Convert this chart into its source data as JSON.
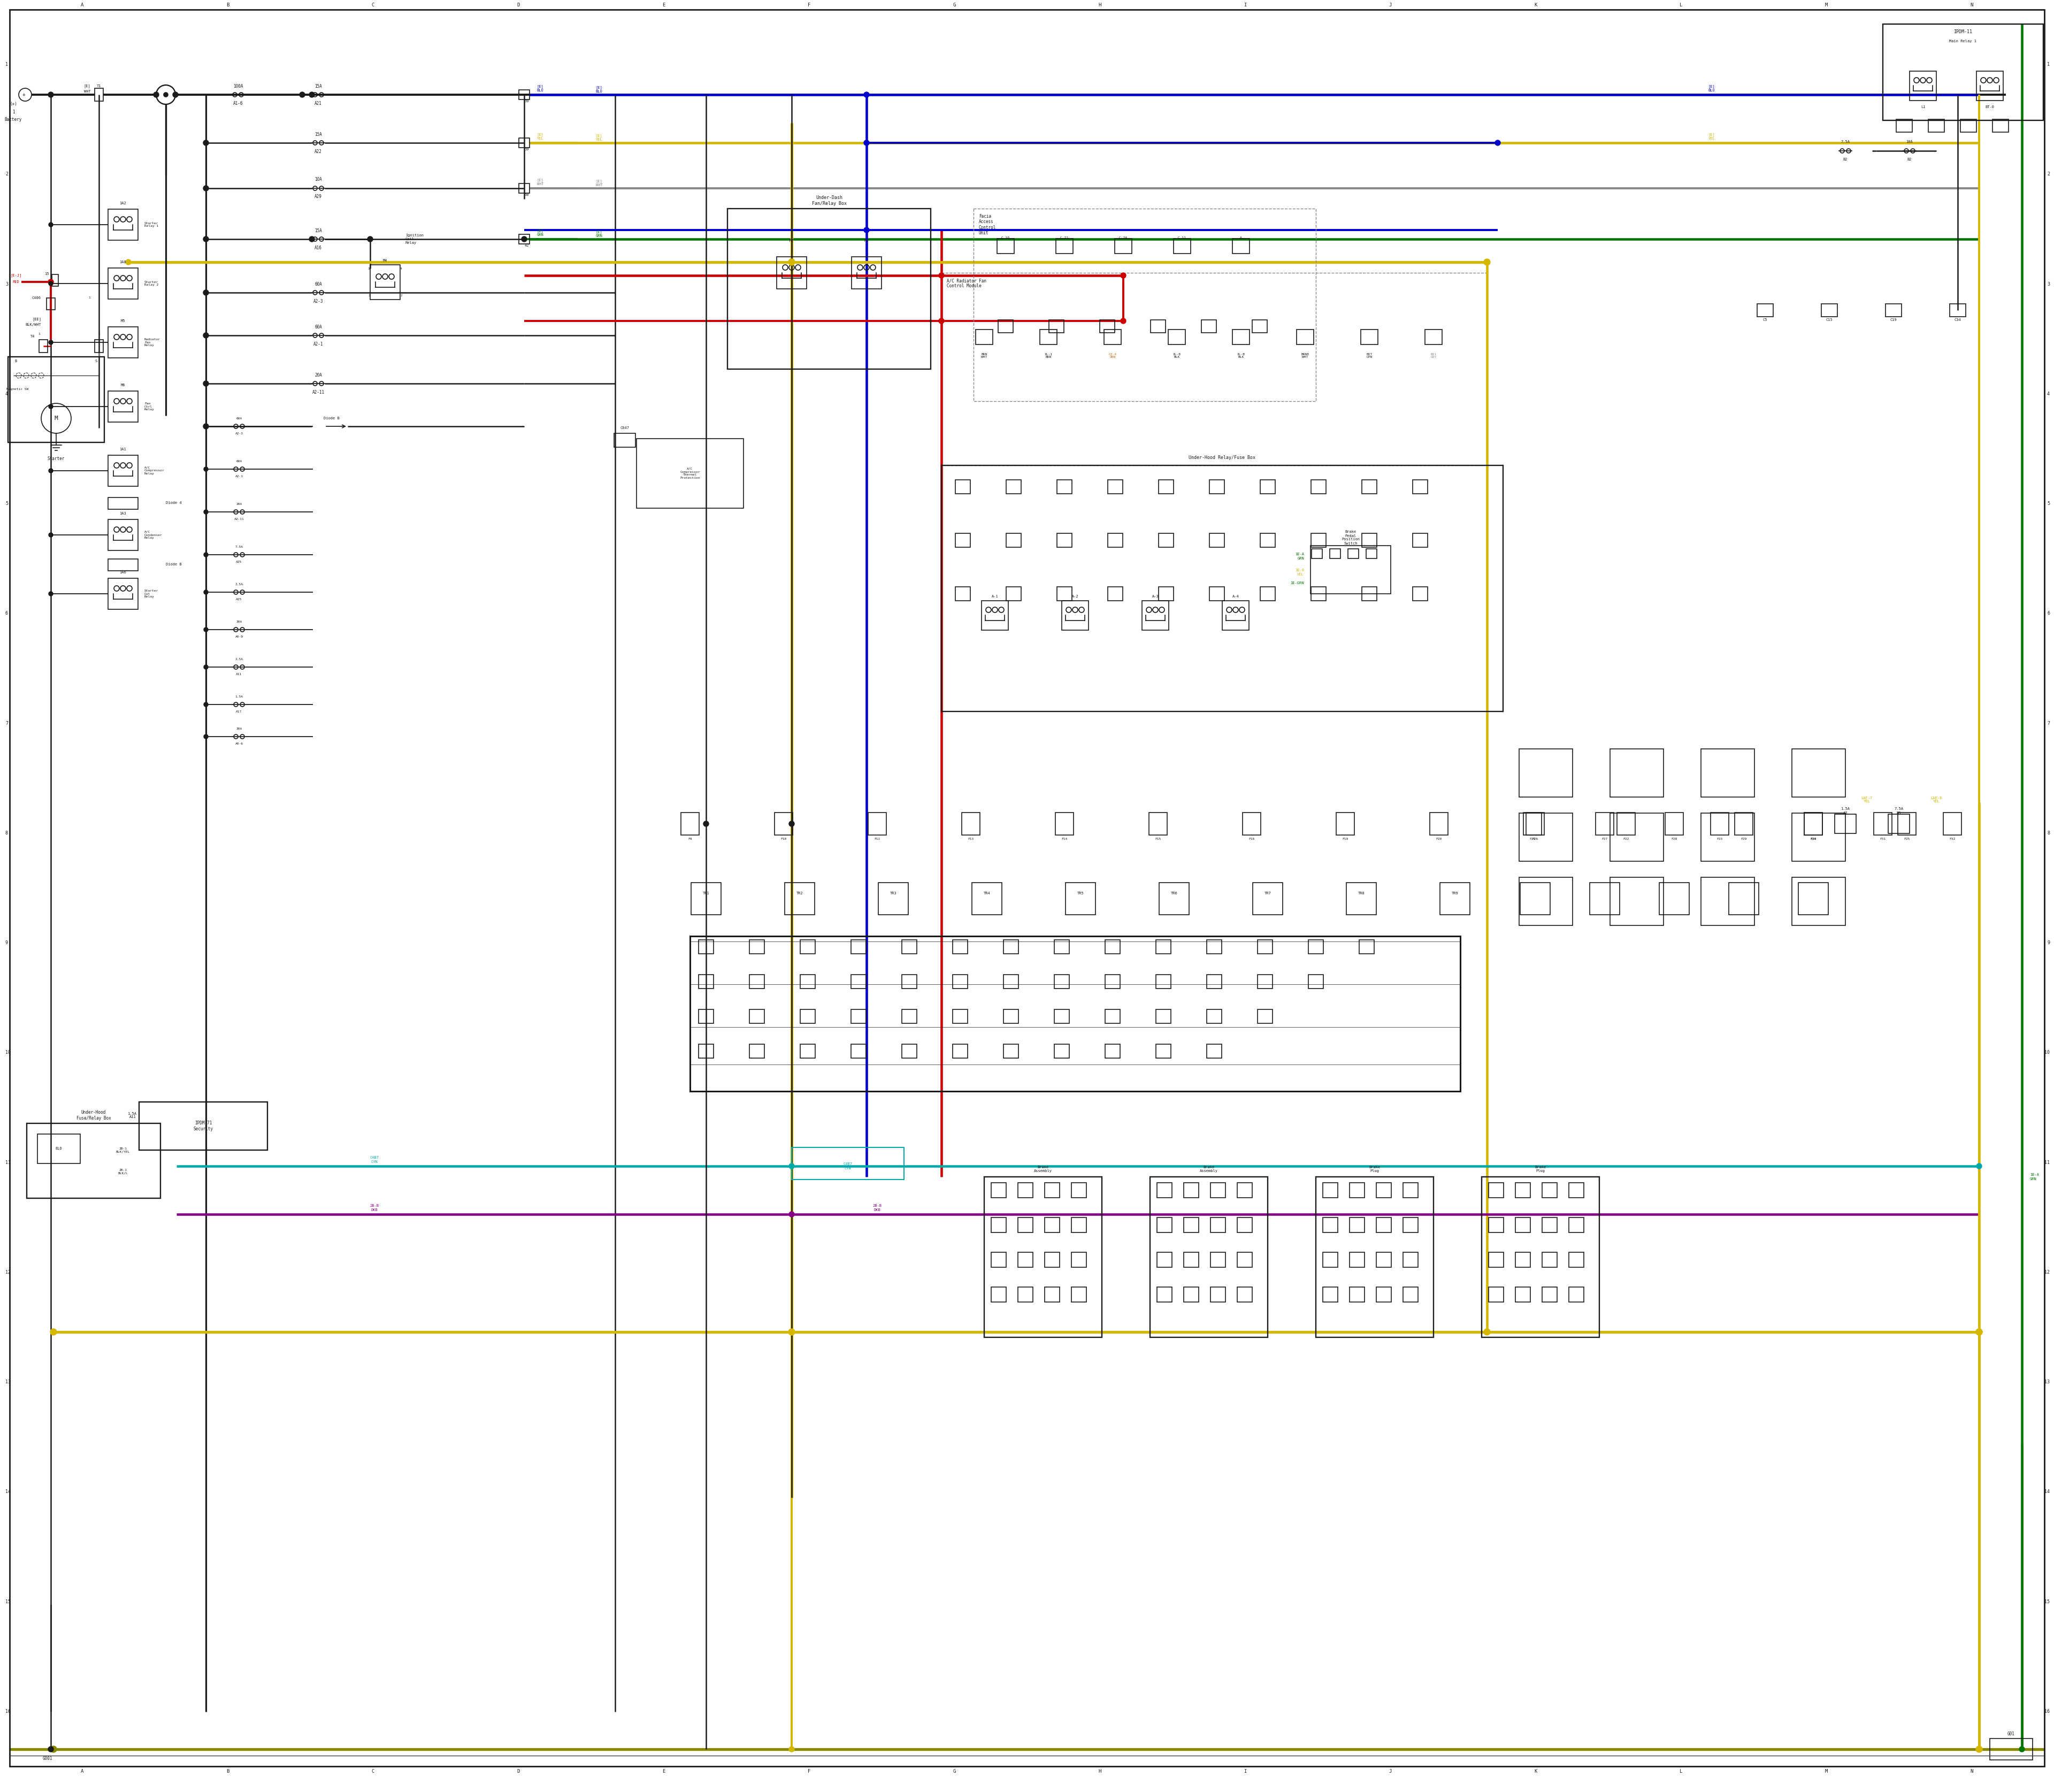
{
  "bg": "#ffffff",
  "colors": {
    "K": "#1a1a1a",
    "R": "#cc0000",
    "B": "#0000cc",
    "Y": "#d4b800",
    "G": "#007700",
    "C": "#00aaaa",
    "P": "#880088",
    "Gr": "#888888",
    "DY": "#888800",
    "Or": "#cc6600"
  },
  "lw": 1.8,
  "flw": 1.2
}
